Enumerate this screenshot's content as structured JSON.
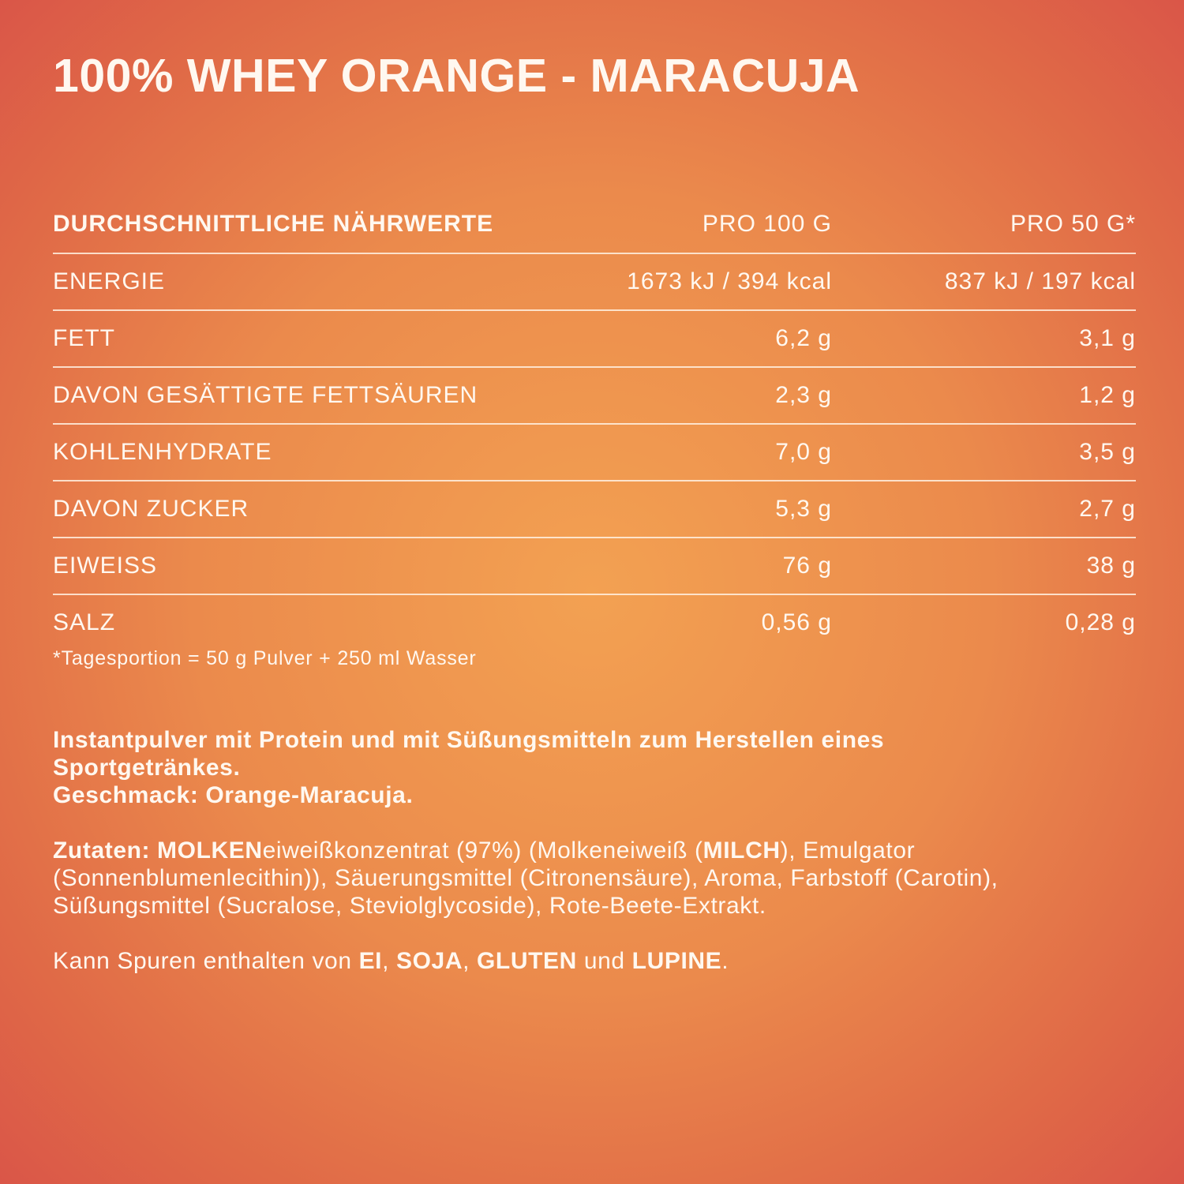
{
  "title": "100% WHEY ORANGE - MARACUJA",
  "table": {
    "header": [
      "DURCHSCHNITTLICHE NÄHRWERTE",
      "PRO 100 G",
      "PRO 50 G*"
    ],
    "rows": [
      {
        "cells": [
          "ENERGIE",
          "1673 kJ / 394 kcal",
          "837 kJ / 197 kcal"
        ],
        "sub": false
      },
      {
        "cells": [
          "FETT",
          "6,2 g",
          "3,1 g"
        ],
        "sub": false
      },
      {
        "cells": [
          "DAVON GESÄTTIGTE FETTSÄUREN",
          "2,3 g",
          "1,2 g"
        ],
        "sub": true
      },
      {
        "cells": [
          "KOHLENHYDRATE",
          "7,0 g",
          "3,5 g"
        ],
        "sub": false
      },
      {
        "cells": [
          "DAVON ZUCKER",
          "5,3 g",
          "2,7 g"
        ],
        "sub": true
      },
      {
        "cells": [
          "EIWEISS",
          "76 g",
          "38 g"
        ],
        "sub": false
      },
      {
        "cells": [
          "SALZ",
          "0,56 g",
          "0,28 g"
        ],
        "sub": false
      }
    ],
    "footnote": "*Tagesportion = 50 g Pulver + 250 ml Wasser"
  },
  "blocks": [
    [
      [
        {
          "text": "Instantpulver mit Protein und mit Süßungsmitteln zum Herstellen eines Sportgetränkes.",
          "bold": true
        }
      ],
      [
        {
          "text": "Geschmack: Orange-Maracuja.",
          "bold": true
        }
      ]
    ],
    [
      [
        {
          "text": "Zutaten: MOLKEN",
          "bold": true
        },
        {
          "text": "eiweißkonzentrat (97%) (Molkeneiweiß (",
          "bold": false
        },
        {
          "text": "MILCH",
          "bold": true
        },
        {
          "text": "), Emulgator (Sonnenblumenlecithin)), Säuerungsmittel (Citronensäure), Aroma, Farbstoff (Carotin), Süßungsmittel (Sucralose, Steviolglycoside), Rote-Beete-Extrakt.",
          "bold": false
        }
      ]
    ],
    [
      [
        {
          "text": "Kann Spuren enthalten von ",
          "bold": false
        },
        {
          "text": "EI",
          "bold": true
        },
        {
          "text": ", ",
          "bold": false
        },
        {
          "text": "SOJA",
          "bold": true
        },
        {
          "text": ", ",
          "bold": false
        },
        {
          "text": "GLUTEN",
          "bold": true
        },
        {
          "text": " und ",
          "bold": false
        },
        {
          "text": "LUPINE",
          "bold": true
        },
        {
          "text": ".",
          "bold": false
        }
      ]
    ]
  ]
}
